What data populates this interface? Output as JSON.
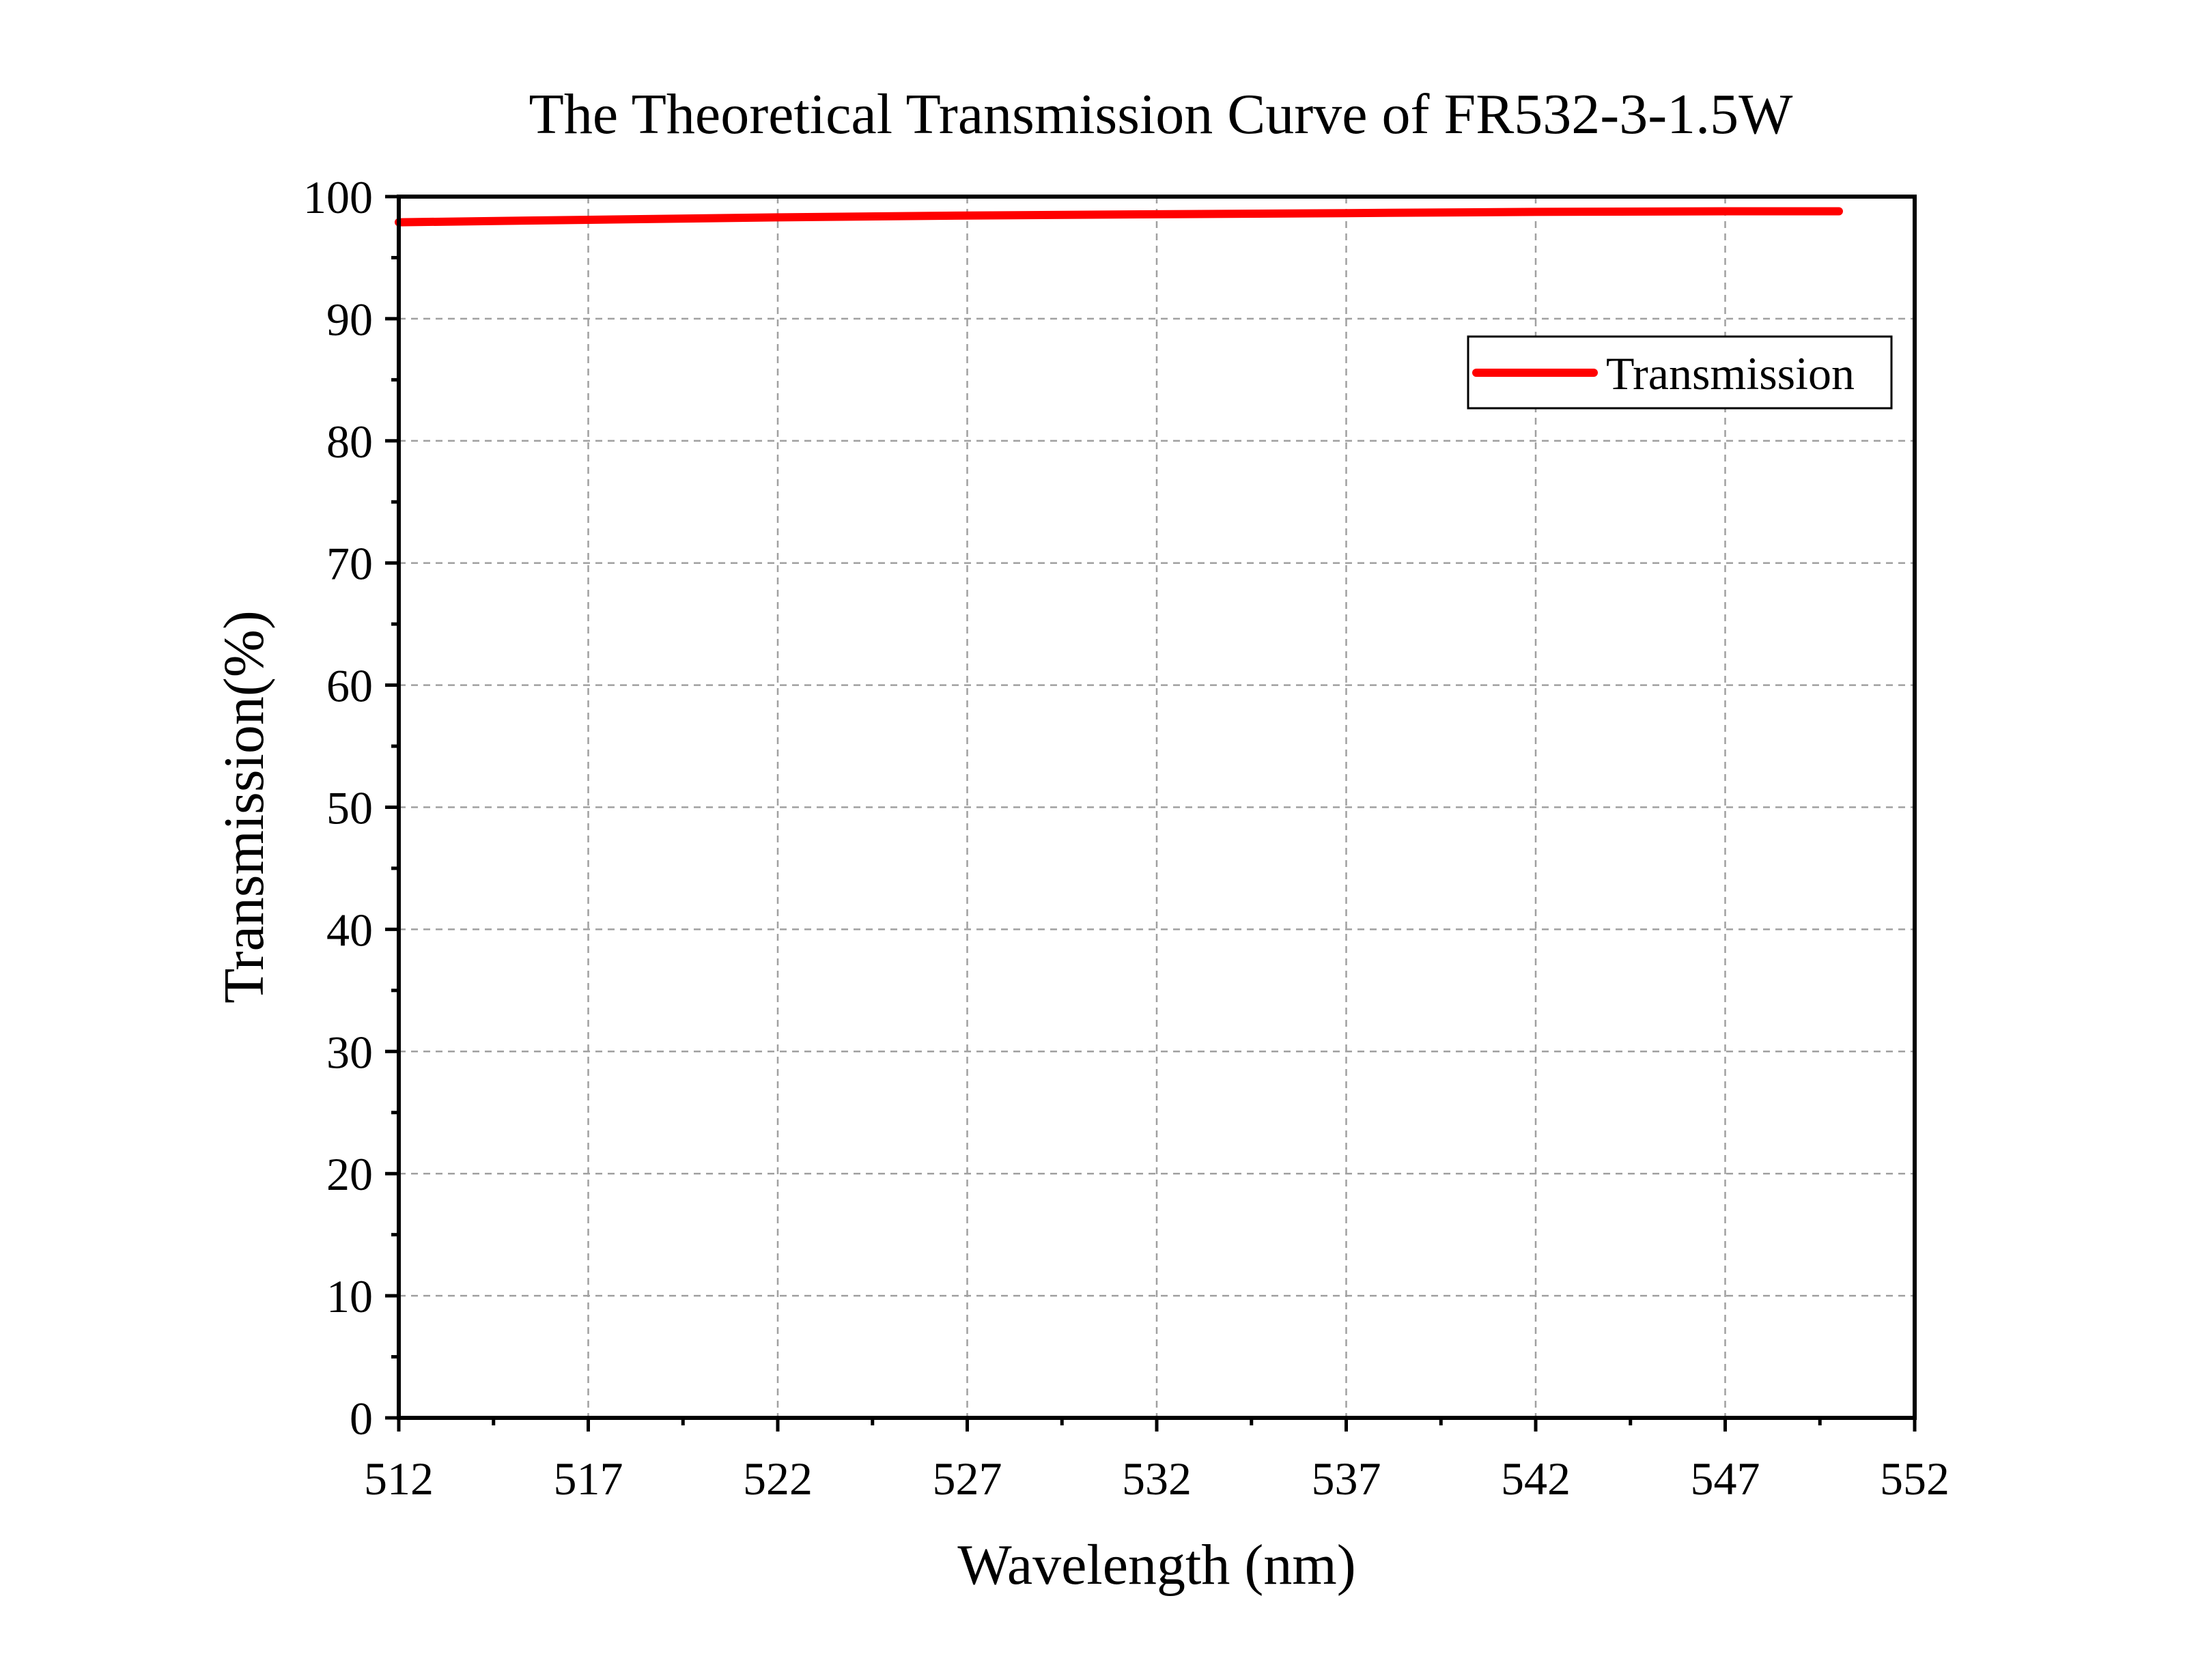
{
  "chart_data": {
    "type": "line",
    "title": "The Theoretical Transmission Curve of FR532-3-1.5W",
    "xlabel": "Wavelength (nm)",
    "ylabel": "Transmission(%)",
    "xlim": [
      512,
      552
    ],
    "ylim": [
      0,
      100
    ],
    "xticks": [
      512,
      517,
      522,
      527,
      532,
      537,
      542,
      547,
      552
    ],
    "yticks": [
      0,
      10,
      20,
      30,
      40,
      50,
      60,
      70,
      80,
      90,
      100
    ],
    "grid": true,
    "legend": {
      "position": "top-right",
      "entries": [
        "Transmission"
      ]
    },
    "series": [
      {
        "name": "Transmission",
        "color": "#ff0000",
        "x": [
          512,
          517,
          522,
          527,
          532,
          537,
          542,
          547,
          550
        ],
        "y": [
          97.9,
          98.1,
          98.3,
          98.45,
          98.55,
          98.65,
          98.75,
          98.8,
          98.8
        ]
      }
    ]
  }
}
